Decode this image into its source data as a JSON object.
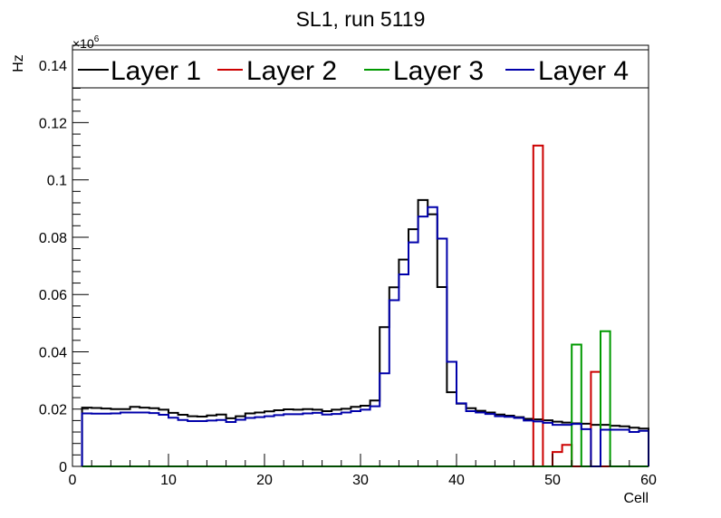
{
  "chart_data": {
    "type": "histogram",
    "title": "SL1, run 5119",
    "xlabel": "Cell",
    "ylabel": "Hz",
    "exponent_base": "×10",
    "exponent_power": "6",
    "xlim": [
      0,
      60
    ],
    "ylim": [
      0,
      0.147
    ],
    "xticks": [
      0,
      10,
      20,
      30,
      40,
      50,
      60
    ],
    "yticks": [
      0,
      0.02,
      0.04,
      0.06,
      0.08,
      0.1,
      0.12,
      0.14
    ],
    "ytick_labels": [
      "0",
      "0.02",
      "0.04",
      "0.06",
      "0.08",
      "0.1",
      "0.12",
      "0.14"
    ],
    "bin_width": 1,
    "x_start": 1,
    "legend_position": "top",
    "series": [
      {
        "name": "Layer 1",
        "color": "#000000",
        "values": [
          0.0205,
          0.0204,
          0.0202,
          0.02,
          0.02,
          0.0208,
          0.0205,
          0.0203,
          0.0198,
          0.0187,
          0.018,
          0.0175,
          0.0174,
          0.0178,
          0.0181,
          0.0168,
          0.0175,
          0.0185,
          0.0188,
          0.0192,
          0.0196,
          0.0199,
          0.0198,
          0.02,
          0.0198,
          0.0193,
          0.0198,
          0.0201,
          0.0208,
          0.0212,
          0.023,
          0.0486,
          0.0625,
          0.0722,
          0.0828,
          0.093,
          0.088,
          0.0626,
          0.0259,
          0.0219,
          0.0203,
          0.0194,
          0.0188,
          0.0181,
          0.0177,
          0.0172,
          0.0166,
          0.0164,
          0.0161,
          0.0156,
          0.0153,
          0.015,
          0.0149,
          0.0145,
          0.0145,
          0.0142,
          0.014,
          0.0135,
          0.0132
        ]
      },
      {
        "name": "Layer 2",
        "color": "#cc0000",
        "values": [
          0,
          0,
          0,
          0,
          0,
          0,
          0,
          0,
          0,
          0,
          0,
          0,
          0,
          0,
          0,
          0,
          0,
          0,
          0,
          0,
          0,
          0,
          0,
          0,
          0,
          0,
          0,
          0,
          0,
          0,
          0,
          0,
          0,
          0,
          0,
          0,
          0,
          0,
          0,
          0,
          0,
          0,
          0,
          0,
          0,
          0,
          0,
          0.112,
          0,
          0.005,
          0.0075,
          0,
          0,
          0.033,
          0,
          0,
          0,
          0,
          0
        ]
      },
      {
        "name": "Layer 3",
        "color": "#009900",
        "values": [
          0,
          0,
          0,
          0,
          0,
          0,
          0,
          0,
          0,
          0,
          0,
          0,
          0,
          0,
          0,
          0,
          0,
          0,
          0,
          0,
          0,
          0,
          0,
          0,
          0,
          0,
          0,
          0,
          0,
          0,
          0,
          0,
          0,
          0,
          0,
          0,
          0,
          0,
          0,
          0,
          0,
          0,
          0,
          0,
          0,
          0,
          0,
          0,
          0,
          0,
          0,
          0.0425,
          0,
          0,
          0.0472,
          0,
          0,
          0,
          0
        ]
      },
      {
        "name": "Layer 4",
        "color": "#0000aa",
        "values": [
          0.0185,
          0.0184,
          0.0184,
          0.0185,
          0.0188,
          0.0188,
          0.0188,
          0.0186,
          0.018,
          0.017,
          0.0162,
          0.0158,
          0.0158,
          0.016,
          0.0162,
          0.0155,
          0.0163,
          0.0169,
          0.0172,
          0.0175,
          0.0179,
          0.0182,
          0.0182,
          0.0185,
          0.0187,
          0.0181,
          0.0183,
          0.0188,
          0.0193,
          0.0198,
          0.021,
          0.0325,
          0.058,
          0.067,
          0.0782,
          0.0872,
          0.0905,
          0.0795,
          0.0365,
          0.022,
          0.0193,
          0.0188,
          0.0183,
          0.0175,
          0.0173,
          0.0169,
          0.016,
          0.0157,
          0.0152,
          0.0145,
          0.0145,
          0.0148,
          0.013,
          0,
          0.0128,
          0.0128,
          0.0128,
          0.012,
          0.0124
        ]
      }
    ]
  }
}
